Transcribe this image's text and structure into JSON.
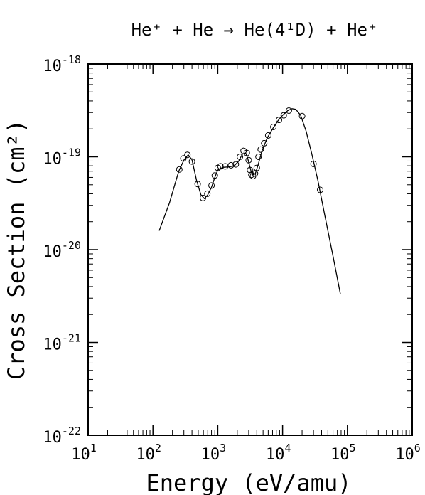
{
  "chart_data": {
    "type": "scatter",
    "title": "He⁺ + He → He(4¹D) + He⁺",
    "xlabel": "Energy (eV/amu)",
    "ylabel": "Cross Section (cm²)",
    "x_scale": "log",
    "y_scale": "log",
    "xlim": [
      10,
      1000000
    ],
    "ylim": [
      1e-22,
      1e-18
    ],
    "grid": false,
    "x_ticks": [
      {
        "base": "10",
        "exp": "1"
      },
      {
        "base": "10",
        "exp": "2"
      },
      {
        "base": "10",
        "exp": "3"
      },
      {
        "base": "10",
        "exp": "4"
      },
      {
        "base": "10",
        "exp": "5"
      },
      {
        "base": "10",
        "exp": "6"
      }
    ],
    "y_ticks": [
      {
        "base": "10",
        "exp": "-22"
      },
      {
        "base": "10",
        "exp": "-21"
      },
      {
        "base": "10",
        "exp": "-20"
      },
      {
        "base": "10",
        "exp": "-19"
      },
      {
        "base": "10",
        "exp": "-18"
      }
    ],
    "series": [
      {
        "kind": "points",
        "x": [
          255,
          295,
          340,
          400,
          490,
          590,
          690,
          800,
          900,
          1000,
          1100,
          1300,
          1600,
          1900,
          2200,
          2500,
          2800,
          3000,
          3150,
          3300,
          3500,
          3750,
          4000,
          4250,
          4600,
          5200,
          6000,
          7200,
          8800,
          10400,
          12500,
          20000,
          30000,
          38000
        ],
        "y": [
          7.3e-20,
          9.6e-20,
          1.05e-19,
          8.9e-20,
          5.1e-20,
          3.6e-20,
          4e-20,
          4.9e-20,
          6.3e-20,
          7.6e-20,
          7.9e-20,
          7.9e-20,
          8.1e-20,
          8.3e-20,
          1e-19,
          1.16e-19,
          1.1e-19,
          9.2e-20,
          7.2e-20,
          6.4e-20,
          6.2e-20,
          6.6e-20,
          7.6e-20,
          1e-19,
          1.2e-19,
          1.4e-19,
          1.7e-19,
          2.1e-19,
          2.5e-19,
          2.8e-19,
          3.15e-19,
          2.75e-19,
          8.4e-20,
          4.4e-20
        ]
      },
      {
        "kind": "line",
        "x": [
          125,
          180,
          250,
          300,
          350,
          400,
          470,
          550,
          620,
          700,
          800,
          900,
          1000,
          1200,
          1500,
          1800,
          2100,
          2400,
          2700,
          2900,
          3100,
          3300,
          3500,
          3800,
          4200,
          4800,
          5800,
          7000,
          8500,
          10000,
          12000,
          14000,
          16000,
          19000,
          23000,
          28000,
          35000,
          45000,
          60000,
          78000
        ],
        "y": [
          1.6e-20,
          3.2e-20,
          7e-20,
          9.2e-20,
          1.05e-19,
          9.3e-20,
          5.6e-20,
          3.9e-20,
          3.55e-20,
          3.9e-20,
          4.7e-20,
          6e-20,
          7.2e-20,
          7.7e-20,
          7.8e-20,
          8e-20,
          9e-20,
          1.07e-19,
          1.1e-19,
          9.6e-20,
          8e-20,
          6.8e-20,
          6.4e-20,
          6.6e-20,
          8.2e-20,
          1.15e-19,
          1.6e-19,
          2e-19,
          2.45e-19,
          2.8e-19,
          3.15e-19,
          3.3e-19,
          3.25e-19,
          2.8e-19,
          1.9e-19,
          1.1e-19,
          5.6e-20,
          2.3e-20,
          8.5e-21,
          3.3e-21
        ]
      }
    ]
  }
}
